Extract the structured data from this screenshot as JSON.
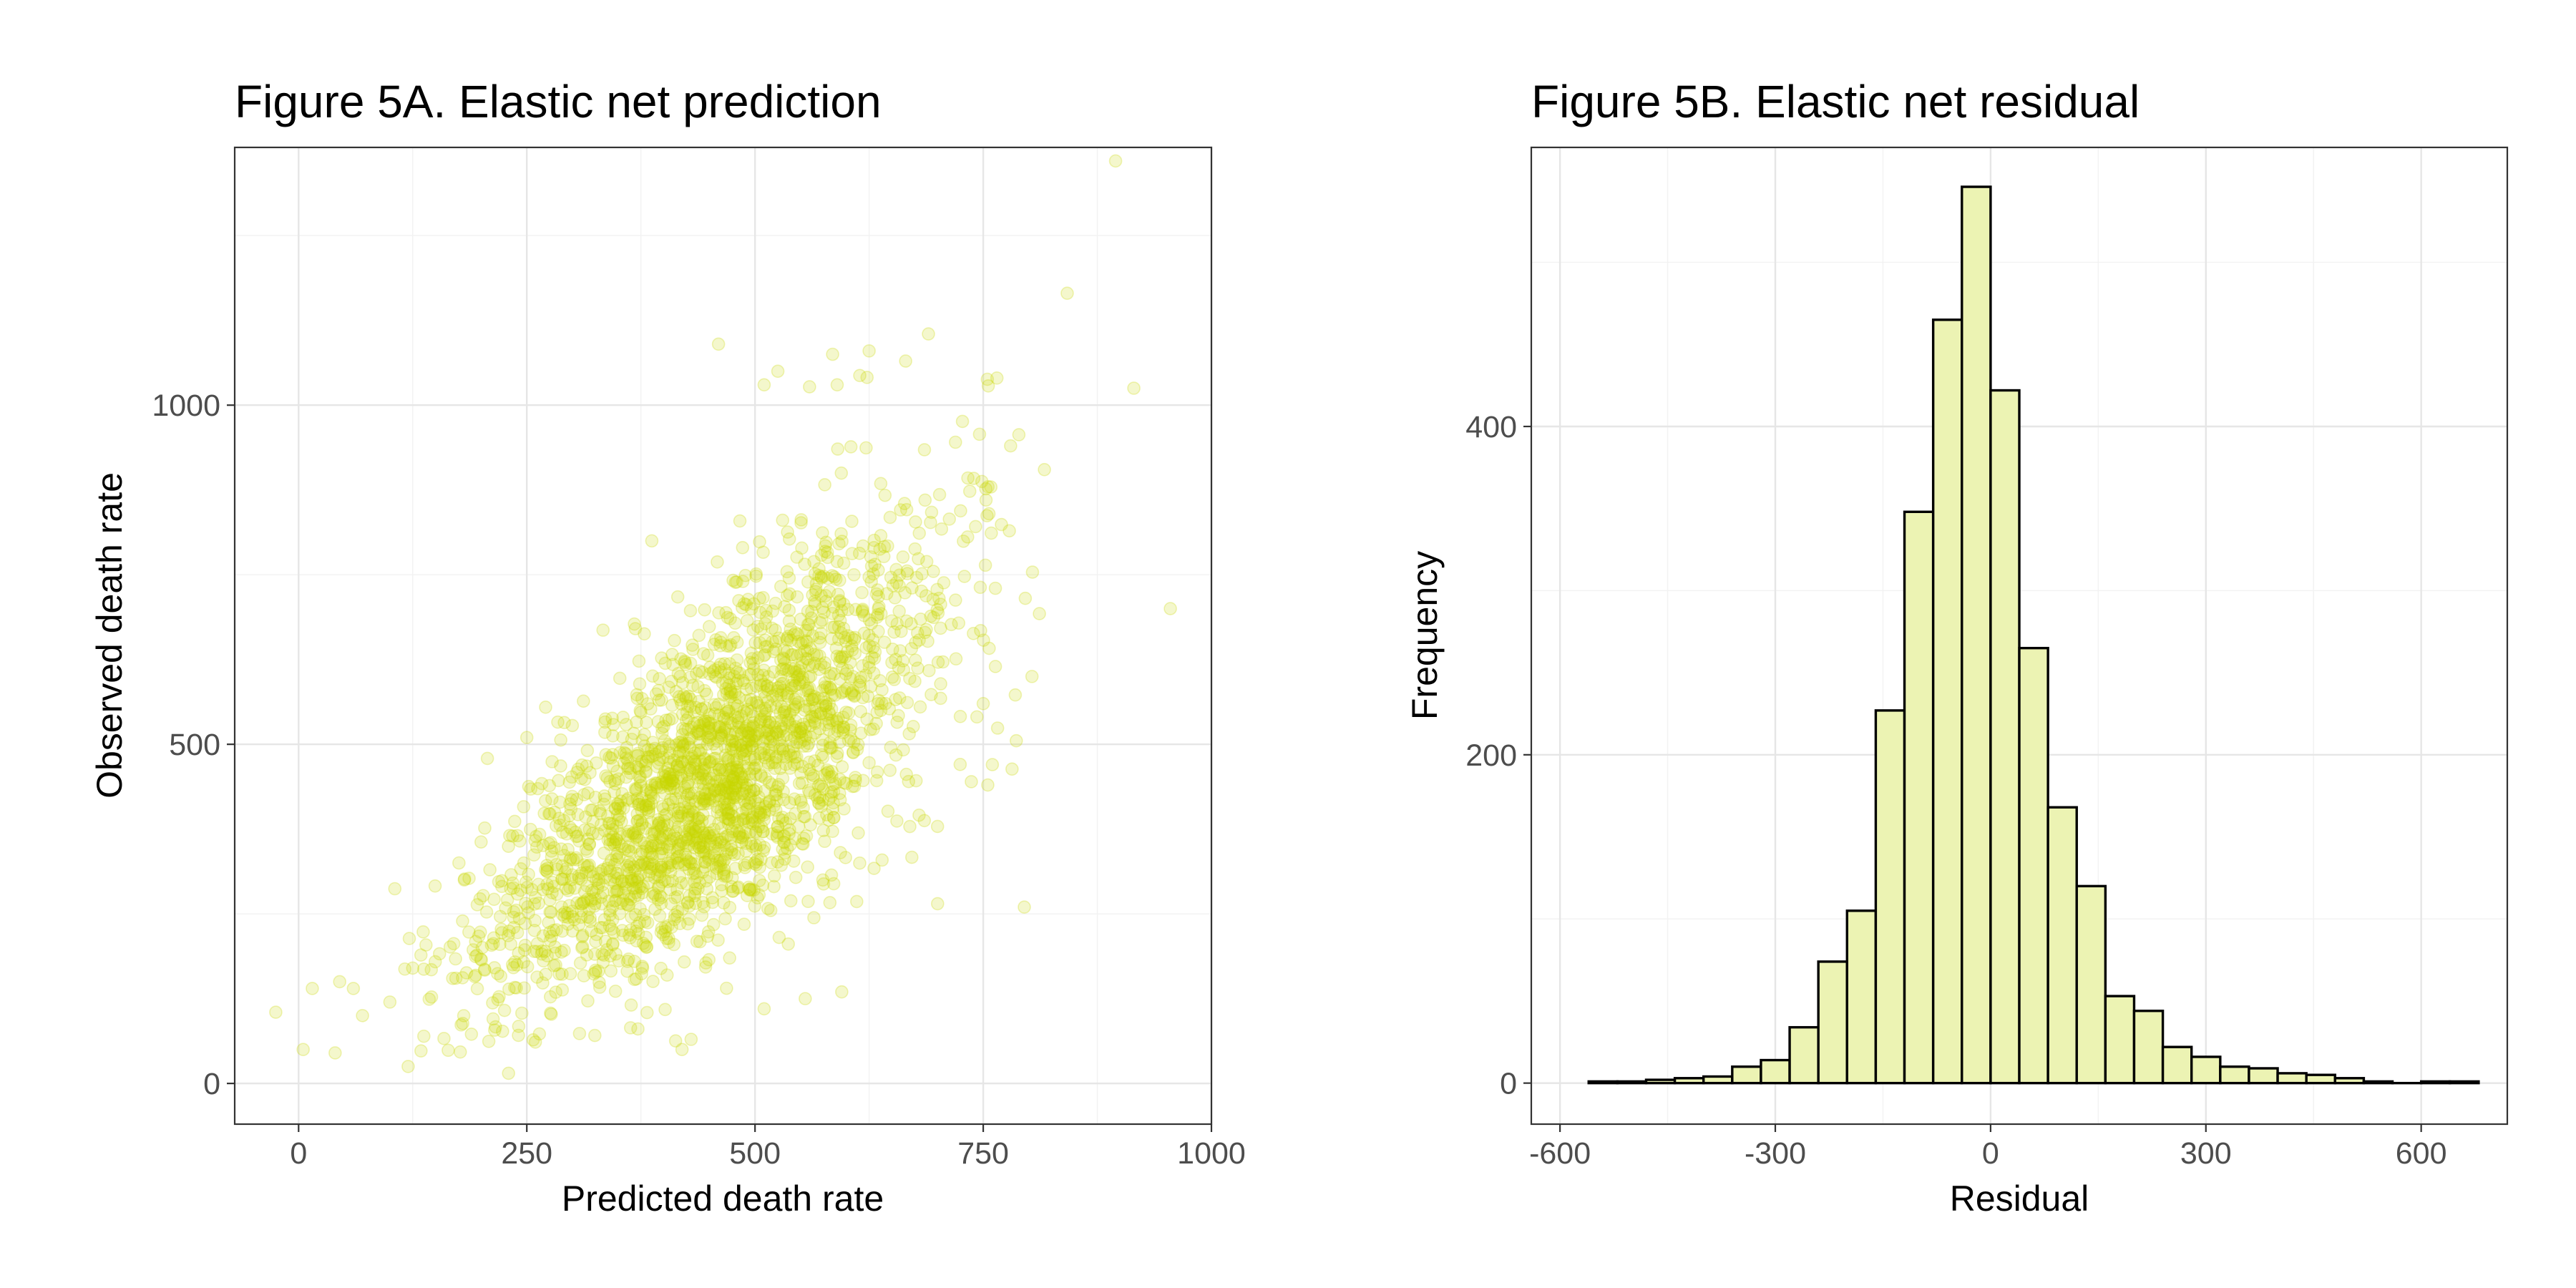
{
  "colors": {
    "point": "#c8d700",
    "bar_fill": "#ecf3b3",
    "bar_stroke": "#000000",
    "grid_major": "#e6e6e6",
    "grid_minor": "#f2f2f2",
    "panel_border": "#333333",
    "tick_text": "#4d4d4d"
  },
  "chart_data": [
    {
      "type": "scatter",
      "title": "Figure 5A. Elastic net prediction",
      "xlabel": "Predicted death rate",
      "ylabel": "Observed death rate",
      "xlim": [
        -70,
        1000
      ],
      "ylim": [
        -60,
        1380
      ],
      "xticks": [
        0,
        250,
        500,
        750,
        1000
      ],
      "xtick_labels": [
        "0",
        "250",
        "500",
        "750",
        "1000"
      ],
      "yticks": [
        0,
        500,
        1000
      ],
      "ytick_labels": [
        "0",
        "500",
        "1000"
      ],
      "grid": true,
      "point_alpha": 0.2,
      "points": [
        [
          895,
          1360
        ],
        [
          842,
          1165
        ],
        [
          915,
          1025
        ],
        [
          955,
          700
        ],
        [
          795,
          260
        ],
        [
          765,
          1040
        ],
        [
          780,
          940
        ],
        [
          690,
          1105
        ],
        [
          665,
          1065
        ],
        [
          625,
          1080
        ],
        [
          585,
          1075
        ],
        [
          525,
          1050
        ],
        [
          510,
          1030
        ],
        [
          460,
          1090
        ],
        [
          590,
          1030
        ],
        [
          750,
          560
        ],
        [
          700,
          265
        ],
        [
          755,
          440
        ],
        [
          760,
          470
        ],
        [
          510,
          110
        ],
        [
          595,
          135
        ],
        [
          555,
          125
        ],
        [
          -25,
          105
        ],
        [
          5,
          50
        ],
        [
          40,
          45
        ],
        [
          230,
          15
        ],
        [
          120,
          25
        ],
        [
          420,
          50
        ],
        [
          430,
          65
        ],
        [
          250,
          510
        ],
        [
          15,
          140
        ],
        [
          45,
          150
        ],
        [
          70,
          100
        ],
        [
          100,
          120
        ],
        [
          60,
          140
        ],
        [
          125,
          170
        ]
      ],
      "cloud": {
        "n": 2400,
        "x_mean": 455,
        "x_sd": 120,
        "intercept": 20,
        "slope": 0.95,
        "resid_sd": 115
      }
    },
    {
      "type": "bar",
      "title": "Figure 5B. Elastic net residual",
      "xlabel": "Residual",
      "ylabel": "Frequency",
      "xlim": [
        -640,
        720
      ],
      "ylim": [
        -25,
        570
      ],
      "xticks": [
        -600,
        -300,
        0,
        300,
        600
      ],
      "xtick_labels": [
        "-600",
        "-300",
        "0",
        "300",
        "600"
      ],
      "yticks": [
        0,
        200,
        400
      ],
      "ytick_labels": [
        "0",
        "200",
        "400"
      ],
      "grid": true,
      "bin_width": 40,
      "bins": [
        {
          "x": -540,
          "count": 1
        },
        {
          "x": -500,
          "count": 1
        },
        {
          "x": -460,
          "count": 2
        },
        {
          "x": -420,
          "count": 3
        },
        {
          "x": -380,
          "count": 4
        },
        {
          "x": -340,
          "count": 10
        },
        {
          "x": -300,
          "count": 14
        },
        {
          "x": -260,
          "count": 34
        },
        {
          "x": -220,
          "count": 74
        },
        {
          "x": -180,
          "count": 105
        },
        {
          "x": -140,
          "count": 227
        },
        {
          "x": -100,
          "count": 348
        },
        {
          "x": -60,
          "count": 465
        },
        {
          "x": -20,
          "count": 546
        },
        {
          "x": 20,
          "count": 422
        },
        {
          "x": 60,
          "count": 265
        },
        {
          "x": 100,
          "count": 168
        },
        {
          "x": 140,
          "count": 120
        },
        {
          "x": 180,
          "count": 53
        },
        {
          "x": 220,
          "count": 44
        },
        {
          "x": 260,
          "count": 22
        },
        {
          "x": 300,
          "count": 16
        },
        {
          "x": 340,
          "count": 10
        },
        {
          "x": 380,
          "count": 9
        },
        {
          "x": 420,
          "count": 6
        },
        {
          "x": 460,
          "count": 5
        },
        {
          "x": 500,
          "count": 3
        },
        {
          "x": 540,
          "count": 1
        },
        {
          "x": 580,
          "count": 0
        },
        {
          "x": 620,
          "count": 1
        },
        {
          "x": 660,
          "count": 1
        }
      ]
    }
  ]
}
